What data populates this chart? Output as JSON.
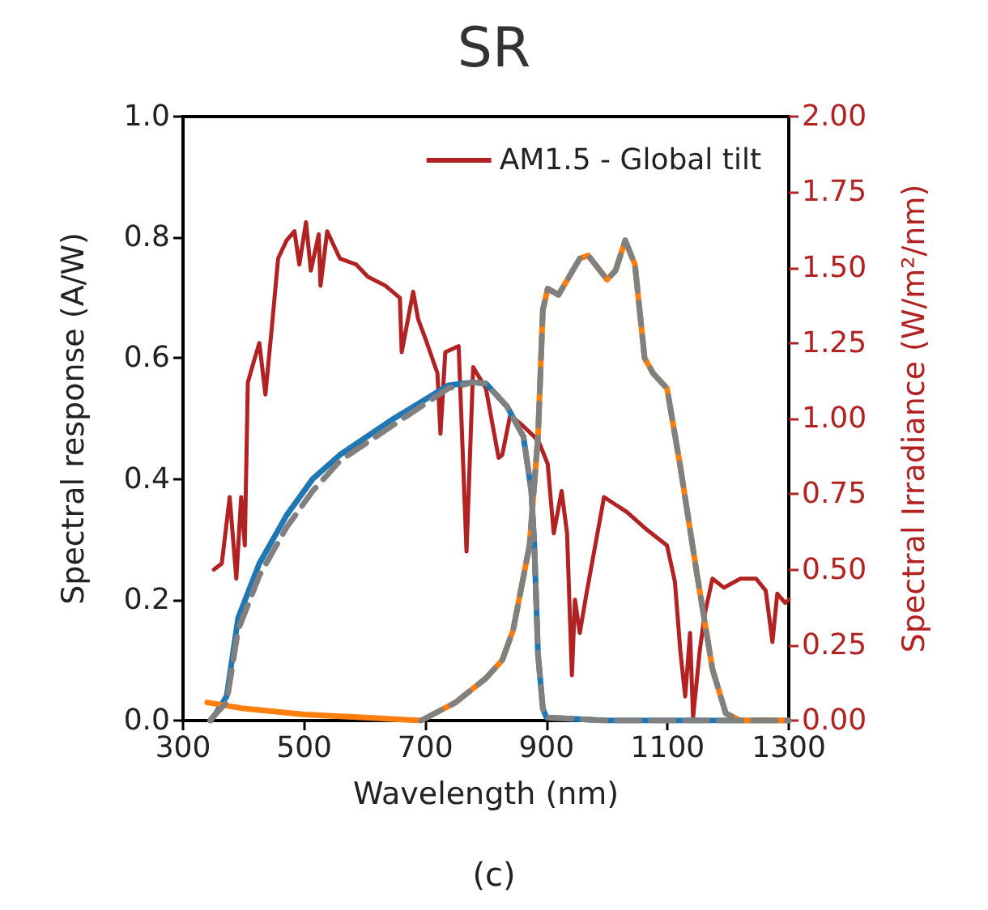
{
  "chart_data": {
    "type": "line",
    "title": "SR",
    "xlabel": "Wavelength (nm)",
    "ylabel": "Spectral response (A/W)",
    "y2label": "Spectral Irradiance (W/m²/nm)",
    "annotations": [
      "(c)"
    ],
    "xlim": [
      300,
      1300
    ],
    "xticks": [
      300,
      500,
      700,
      900,
      1100,
      1300
    ],
    "ylim": [
      0,
      1.0
    ],
    "yticks": [
      {
        "value": 0,
        "label": "0.0"
      },
      0.2,
      0.4,
      0.6,
      0.8,
      {
        "value": 1,
        "label": "1.0"
      }
    ],
    "y2lim": [
      0,
      2.0
    ],
    "y2ticks": [
      {
        "value": 0,
        "label": "0.00"
      },
      0.25,
      {
        "value": 0.5,
        "label": "0.50"
      },
      0.75,
      {
        "value": 1,
        "label": "1.00"
      },
      1.25,
      {
        "value": 1.5,
        "label": "1.50"
      },
      1.75,
      {
        "value": 2,
        "label": "2.00"
      }
    ],
    "grid": false,
    "legend": "top right",
    "marker": "none",
    "series": [
      {
        "name": "AM1.5 - Global tilt",
        "color": "#b22222",
        "axis": "y2",
        "line_style": "solid",
        "x": [
          351,
          364,
          377,
          388,
          396,
          402,
          407,
          417,
          426,
          436,
          447,
          457,
          471,
          484,
          492,
          503,
          511,
          524,
          527,
          538,
          559,
          586,
          605,
          634,
          658,
          661,
          680,
          688,
          701,
          720,
          725,
          733,
          755,
          768,
          779,
          800,
          821,
          827,
          840,
          859,
          880,
          888,
          902,
          912,
          925,
          934,
          942,
          947,
          955,
          966,
          995,
          1033,
          1067,
          1099,
          1112,
          1121,
          1129,
          1137,
          1142,
          1153,
          1161,
          1174,
          1193,
          1220,
          1246,
          1262,
          1273,
          1281,
          1294,
          1300
        ],
        "values": [
          0.5,
          0.52,
          0.74,
          0.47,
          0.74,
          0.58,
          1.12,
          1.19,
          1.25,
          1.08,
          1.31,
          1.53,
          1.59,
          1.62,
          1.51,
          1.65,
          1.49,
          1.61,
          1.44,
          1.62,
          1.53,
          1.51,
          1.47,
          1.44,
          1.4,
          1.22,
          1.42,
          1.33,
          1.26,
          1.15,
          0.95,
          1.22,
          1.24,
          0.56,
          1.17,
          1.1,
          0.87,
          0.88,
          1.01,
          0.98,
          0.94,
          0.92,
          0.85,
          0.62,
          0.76,
          0.62,
          0.15,
          0.4,
          0.29,
          0.42,
          0.74,
          0.69,
          0.63,
          0.58,
          0.46,
          0.23,
          0.08,
          0.29,
          0.01,
          0.23,
          0.35,
          0.47,
          0.44,
          0.47,
          0.47,
          0.43,
          0.26,
          0.42,
          0.39,
          0.4
        ]
      },
      {
        "color": "#1f77b4",
        "line_style": "solid",
        "x": [
          345,
          353,
          372,
          391,
          426,
          471,
          514,
          559,
          648,
          738,
          779,
          800,
          835,
          862,
          875,
          880,
          886,
          894,
          900,
          1000,
          1300
        ],
        "values": [
          0,
          0.01,
          0.04,
          0.17,
          0.26,
          0.34,
          0.4,
          0.44,
          0.5,
          0.555,
          0.56,
          0.558,
          0.52,
          0.47,
          0.38,
          0.29,
          0.11,
          0.02,
          0.005,
          0,
          0
        ]
      },
      {
        "color": "#ff7f0e",
        "line_style": "solid",
        "x": [
          340,
          400,
          500,
          600,
          693,
          750,
          800,
          827,
          845,
          872,
          886,
          894,
          902,
          920,
          955,
          969,
          1000,
          1014,
          1030,
          1046,
          1062,
          1076,
          1099,
          1121,
          1148,
          1174,
          1196,
          1220,
          1300
        ],
        "values": [
          0.03,
          0.02,
          0.01,
          0.005,
          0,
          0.03,
          0.07,
          0.1,
          0.15,
          0.29,
          0.47,
          0.68,
          0.715,
          0.705,
          0.765,
          0.77,
          0.73,
          0.745,
          0.795,
          0.755,
          0.6,
          0.575,
          0.55,
          0.42,
          0.245,
          0.085,
          0.012,
          0,
          0
        ]
      },
      {
        "color": "#808080",
        "line_style": "dashed",
        "x": [
          345,
          353,
          372,
          391,
          426,
          471,
          514,
          559,
          648,
          738,
          779,
          800,
          835,
          862,
          875,
          880,
          886,
          894,
          900,
          1000,
          1300
        ],
        "values": [
          0,
          0.01,
          0.03,
          0.15,
          0.24,
          0.32,
          0.38,
          0.43,
          0.49,
          0.55,
          0.56,
          0.558,
          0.52,
          0.47,
          0.38,
          0.29,
          0.11,
          0.02,
          0.005,
          0,
          0
        ]
      },
      {
        "color": "#808080",
        "line_style": "dashed",
        "x": [
          693,
          750,
          800,
          827,
          845,
          872,
          886,
          894,
          902,
          920,
          955,
          969,
          1000,
          1014,
          1030,
          1046,
          1062,
          1076,
          1099,
          1121,
          1148,
          1174,
          1196,
          1220
        ],
        "values": [
          0,
          0.03,
          0.07,
          0.1,
          0.15,
          0.29,
          0.47,
          0.68,
          0.715,
          0.705,
          0.765,
          0.77,
          0.73,
          0.745,
          0.795,
          0.755,
          0.6,
          0.575,
          0.55,
          0.42,
          0.245,
          0.085,
          0.012,
          0
        ]
      }
    ]
  }
}
